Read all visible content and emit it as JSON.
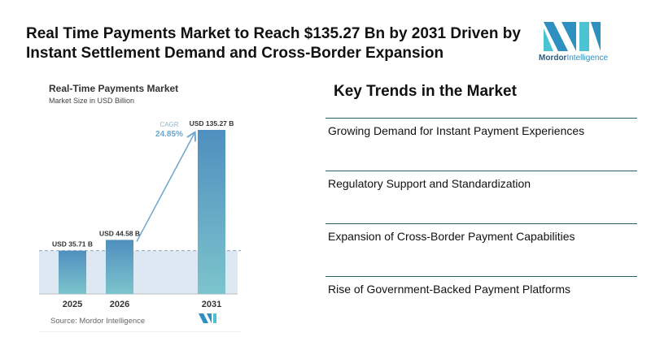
{
  "header": {
    "title": "Real Time Payments Market to Reach $135.27 Bn by 2031 Driven by Instant Settlement Demand and Cross-Border Expansion",
    "logo_text_bold": "Mordor",
    "logo_text": "Intelligence"
  },
  "chart_data": {
    "type": "bar",
    "title": "Real-Time Payments Market",
    "subtitle": "Market Size in USD Billion",
    "categories": [
      "2025",
      "2026",
      "2031"
    ],
    "values": [
      35.71,
      44.58,
      135.27
    ],
    "data_labels": [
      "USD 35.71 B",
      "USD 44.58 B",
      "USD 135.27 B"
    ],
    "annotation": {
      "label": "CAGR",
      "value": "24.85%"
    },
    "source": "Source: Mordor Intelligence",
    "ylim": [
      0,
      135.27
    ]
  },
  "trends": {
    "title": "Key Trends in the Market",
    "items": [
      "Growing Demand for Instant Payment Experiences",
      "Regulatory Support and Standardization",
      "Expansion of Cross-Border Payment Capabilities",
      "Rise of Government-Backed Payment Platforms"
    ]
  }
}
